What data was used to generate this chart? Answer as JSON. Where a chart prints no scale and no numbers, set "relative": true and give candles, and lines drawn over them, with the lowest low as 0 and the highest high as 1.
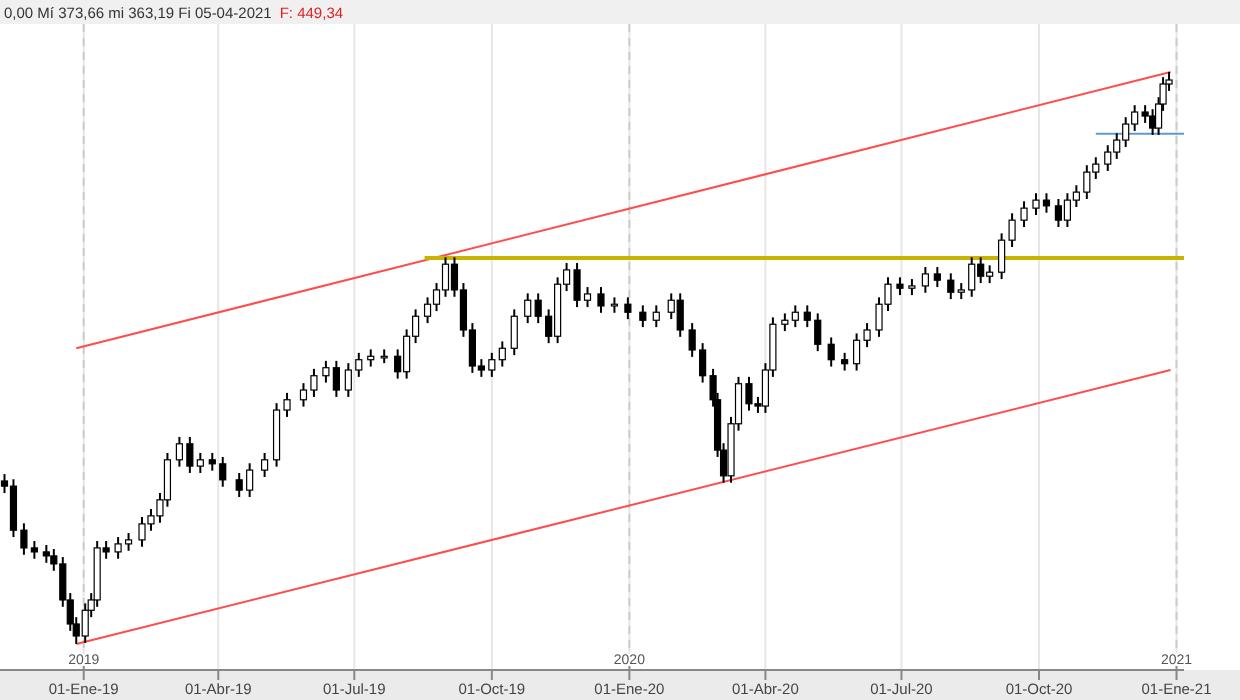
{
  "chart_data": {
    "type": "candlestick",
    "relative": true,
    "color": "#000000",
    "grid": "x",
    "annotations": [
      "0,00 Mí 373,66 mi 363,19 Fi 05-04-2021",
      "F: 449,34"
    ],
    "xlim": [
      "2018-11-06",
      "2021-01-06"
    ],
    "xticks": [
      {
        "value": "2019-01-01",
        "label": "01-Ene-19"
      },
      {
        "value": "2019-04-01",
        "label": "01-Abr-19"
      },
      {
        "value": "2019-07-01",
        "label": "01-Jul-19"
      },
      {
        "value": "2019-10-01",
        "label": "01-Oct-19"
      },
      {
        "value": "2020-01-01",
        "label": "01-Ene-20"
      },
      {
        "value": "2020-04-01",
        "label": "01-Abr-20"
      },
      {
        "value": "2020-07-01",
        "label": "01-Jul-20"
      },
      {
        "value": "2020-10-01",
        "label": "01-Oct-20"
      },
      {
        "value": "2021-01-01",
        "label": "01-Ene-21"
      }
    ],
    "x2lim": [
      "2018-11-06",
      "2021-01-06"
    ],
    "x2ticks": [
      {
        "value": "2019-01-01",
        "label": "2019"
      },
      {
        "value": "2020-01-01",
        "label": "2020"
      },
      {
        "value": "2021-01-01",
        "label": "2021"
      }
    ],
    "x": [
      "2018-11-09",
      "2018-11-15",
      "2018-11-22",
      "2018-11-29",
      "2018-12-07",
      "2018-12-12",
      "2018-12-18",
      "2018-12-23",
      "2018-12-27",
      "2019-01-02",
      "2019-01-06",
      "2019-01-10",
      "2019-01-16",
      "2019-01-24",
      "2019-01-31",
      "2019-02-09",
      "2019-02-15",
      "2019-02-21",
      "2019-02-26",
      "2019-03-06",
      "2019-03-13",
      "2019-03-20",
      "2019-03-28",
      "2019-04-04",
      "2019-04-15",
      "2019-04-22",
      "2019-05-02",
      "2019-05-10",
      "2019-05-17",
      "2019-05-28",
      "2019-06-04",
      "2019-06-12",
      "2019-06-19",
      "2019-06-27",
      "2019-07-04",
      "2019-07-12",
      "2019-07-21",
      "2019-07-30",
      "2019-08-05",
      "2019-08-11",
      "2019-08-19",
      "2019-08-25",
      "2019-08-31",
      "2019-09-06",
      "2019-09-12",
      "2019-09-18",
      "2019-09-24",
      "2019-10-01",
      "2019-10-08",
      "2019-10-16",
      "2019-10-25",
      "2019-11-01",
      "2019-11-08",
      "2019-11-14",
      "2019-11-20",
      "2019-11-27",
      "2019-12-04",
      "2019-12-13",
      "2019-12-22",
      "2019-12-31",
      "2020-01-10",
      "2020-01-19",
      "2020-01-29",
      "2020-02-04",
      "2020-02-12",
      "2020-02-19",
      "2020-02-26",
      "2020-02-29",
      "2020-03-04",
      "2020-03-09",
      "2020-03-14",
      "2020-03-21",
      "2020-03-27",
      "2020-04-01",
      "2020-04-06",
      "2020-04-14",
      "2020-04-21",
      "2020-04-29",
      "2020-05-06",
      "2020-05-15",
      "2020-05-24",
      "2020-06-01",
      "2020-06-08",
      "2020-06-16",
      "2020-06-22",
      "2020-06-30",
      "2020-07-08",
      "2020-07-17",
      "2020-07-25",
      "2020-08-03",
      "2020-08-10",
      "2020-08-17",
      "2020-08-23",
      "2020-08-29",
      "2020-09-06",
      "2020-09-13",
      "2020-09-21",
      "2020-09-29",
      "2020-10-06",
      "2020-10-14",
      "2020-10-20",
      "2020-10-26",
      "2020-11-02",
      "2020-11-08",
      "2020-11-16",
      "2020-11-22",
      "2020-11-28",
      "2020-12-04",
      "2020-12-11",
      "2020-12-16",
      "2020-12-20",
      "2020-12-23",
      "2020-12-27"
    ],
    "ohlc": [
      [
        0.285,
        0.297,
        0.264,
        0.276
      ],
      [
        0.276,
        0.288,
        0.187,
        0.199
      ],
      [
        0.199,
        0.211,
        0.156,
        0.168
      ],
      [
        0.168,
        0.18,
        0.149,
        0.161
      ],
      [
        0.161,
        0.173,
        0.142,
        0.154
      ],
      [
        0.154,
        0.166,
        0.128,
        0.14
      ],
      [
        0.14,
        0.152,
        0.065,
        0.077
      ],
      [
        0.077,
        0.089,
        0.023,
        0.035
      ],
      [
        0.035,
        0.047,
        0,
        0.014
      ],
      [
        0.014,
        0.071,
        0.002,
        0.059
      ],
      [
        0.059,
        0.089,
        0.047,
        0.077
      ],
      [
        0.077,
        0.18,
        0.065,
        0.168
      ],
      [
        0.168,
        0.18,
        0.149,
        0.161
      ],
      [
        0.161,
        0.187,
        0.149,
        0.175
      ],
      [
        0.175,
        0.194,
        0.163,
        0.182
      ],
      [
        0.182,
        0.222,
        0.17,
        0.21
      ],
      [
        0.21,
        0.236,
        0.198,
        0.224
      ],
      [
        0.224,
        0.264,
        0.212,
        0.252
      ],
      [
        0.252,
        0.334,
        0.24,
        0.322
      ],
      [
        0.322,
        0.362,
        0.31,
        0.35
      ],
      [
        0.35,
        0.362,
        0.299,
        0.311
      ],
      [
        0.311,
        0.334,
        0.299,
        0.322
      ],
      [
        0.322,
        0.334,
        0.303,
        0.315
      ],
      [
        0.315,
        0.327,
        0.275,
        0.287
      ],
      [
        0.287,
        0.299,
        0.257,
        0.269
      ],
      [
        0.269,
        0.316,
        0.257,
        0.304
      ],
      [
        0.304,
        0.334,
        0.292,
        0.322
      ],
      [
        0.322,
        0.421,
        0.31,
        0.409
      ],
      [
        0.409,
        0.439,
        0.397,
        0.427
      ],
      [
        0.427,
        0.456,
        0.415,
        0.444
      ],
      [
        0.444,
        0.481,
        0.432,
        0.469
      ],
      [
        0.469,
        0.495,
        0.457,
        0.483
      ],
      [
        0.483,
        0.495,
        0.432,
        0.444
      ],
      [
        0.444,
        0.491,
        0.432,
        0.479
      ],
      [
        0.479,
        0.509,
        0.467,
        0.497
      ],
      [
        0.497,
        0.515,
        0.485,
        0.503
      ],
      [
        0.503,
        0.515,
        0.491,
        0.503
      ],
      [
        0.503,
        0.515,
        0.464,
        0.476
      ],
      [
        0.476,
        0.55,
        0.464,
        0.538
      ],
      [
        0.538,
        0.585,
        0.526,
        0.573
      ],
      [
        0.573,
        0.606,
        0.561,
        0.594
      ],
      [
        0.594,
        0.631,
        0.582,
        0.619
      ],
      [
        0.619,
        0.676,
        0.607,
        0.664
      ],
      [
        0.664,
        0.676,
        0.607,
        0.619
      ],
      [
        0.619,
        0.631,
        0.537,
        0.549
      ],
      [
        0.549,
        0.561,
        0.474,
        0.486
      ],
      [
        0.486,
        0.498,
        0.467,
        0.479
      ],
      [
        0.479,
        0.509,
        0.467,
        0.497
      ],
      [
        0.497,
        0.529,
        0.485,
        0.517
      ],
      [
        0.517,
        0.585,
        0.505,
        0.573
      ],
      [
        0.573,
        0.613,
        0.561,
        0.601
      ],
      [
        0.601,
        0.613,
        0.561,
        0.573
      ],
      [
        0.573,
        0.585,
        0.526,
        0.538
      ],
      [
        0.538,
        0.641,
        0.526,
        0.629
      ],
      [
        0.629,
        0.666,
        0.617,
        0.654
      ],
      [
        0.654,
        0.666,
        0.589,
        0.601
      ],
      [
        0.601,
        0.624,
        0.589,
        0.612
      ],
      [
        0.612,
        0.624,
        0.579,
        0.591
      ],
      [
        0.591,
        0.606,
        0.579,
        0.594
      ],
      [
        0.594,
        0.606,
        0.568,
        0.58
      ],
      [
        0.58,
        0.592,
        0.554,
        0.566
      ],
      [
        0.566,
        0.592,
        0.554,
        0.58
      ],
      [
        0.58,
        0.613,
        0.568,
        0.601
      ],
      [
        0.601,
        0.613,
        0.537,
        0.549
      ],
      [
        0.549,
        0.561,
        0.502,
        0.514
      ],
      [
        0.514,
        0.526,
        0.457,
        0.469
      ],
      [
        0.469,
        0.481,
        0.415,
        0.427
      ],
      [
        0.427,
        0.439,
        0.327,
        0.339
      ],
      [
        0.339,
        0.351,
        0.282,
        0.294
      ],
      [
        0.294,
        0.397,
        0.282,
        0.385
      ],
      [
        0.385,
        0.467,
        0.373,
        0.455
      ],
      [
        0.455,
        0.467,
        0.408,
        0.42
      ],
      [
        0.42,
        0.432,
        0.404,
        0.416
      ],
      [
        0.416,
        0.491,
        0.404,
        0.479
      ],
      [
        0.479,
        0.571,
        0.467,
        0.559
      ],
      [
        0.559,
        0.578,
        0.547,
        0.566
      ],
      [
        0.566,
        0.592,
        0.554,
        0.58
      ],
      [
        0.58,
        0.592,
        0.554,
        0.566
      ],
      [
        0.566,
        0.578,
        0.512,
        0.524
      ],
      [
        0.524,
        0.536,
        0.485,
        0.497
      ],
      [
        0.497,
        0.509,
        0.478,
        0.49
      ],
      [
        0.49,
        0.543,
        0.478,
        0.531
      ],
      [
        0.531,
        0.561,
        0.519,
        0.549
      ],
      [
        0.549,
        0.606,
        0.537,
        0.594
      ],
      [
        0.594,
        0.641,
        0.582,
        0.629
      ],
      [
        0.629,
        0.641,
        0.61,
        0.622
      ],
      [
        0.622,
        0.638,
        0.61,
        0.626
      ],
      [
        0.626,
        0.659,
        0.614,
        0.647
      ],
      [
        0.647,
        0.659,
        0.624,
        0.636
      ],
      [
        0.636,
        0.648,
        0.603,
        0.615
      ],
      [
        0.615,
        0.631,
        0.603,
        0.619
      ],
      [
        0.619,
        0.676,
        0.607,
        0.664
      ],
      [
        0.664,
        0.676,
        0.631,
        0.643
      ],
      [
        0.643,
        0.662,
        0.631,
        0.65
      ],
      [
        0.65,
        0.718,
        0.638,
        0.706
      ],
      [
        0.706,
        0.753,
        0.694,
        0.741
      ],
      [
        0.741,
        0.774,
        0.729,
        0.762
      ],
      [
        0.762,
        0.788,
        0.75,
        0.776
      ],
      [
        0.776,
        0.788,
        0.754,
        0.766
      ],
      [
        0.766,
        0.778,
        0.729,
        0.741
      ],
      [
        0.741,
        0.788,
        0.729,
        0.776
      ],
      [
        0.776,
        0.802,
        0.764,
        0.79
      ],
      [
        0.79,
        0.837,
        0.778,
        0.825
      ],
      [
        0.825,
        0.851,
        0.813,
        0.839
      ],
      [
        0.839,
        0.872,
        0.827,
        0.86
      ],
      [
        0.86,
        0.893,
        0.848,
        0.881
      ],
      [
        0.881,
        0.921,
        0.869,
        0.909
      ],
      [
        0.909,
        0.942,
        0.897,
        0.93
      ],
      [
        0.93,
        0.942,
        0.911,
        0.923
      ],
      [
        0.923,
        0.935,
        0.89,
        0.902
      ],
      [
        0.902,
        0.956,
        0.89,
        0.944
      ],
      [
        0.944,
        0.991,
        0.932,
        0.979
      ],
      [
        0.979,
        1,
        0.967,
        0.986
      ]
    ],
    "series": [
      {
        "type": "line",
        "x": [
          "2018-12-27",
          "2020-12-28"
        ],
        "values": [
          0.517,
          1
        ],
        "color": "#ff4d4d"
      },
      {
        "type": "line",
        "x": [
          "2018-12-27",
          "2020-12-28"
        ],
        "values": [
          0,
          0.479
        ],
        "color": "#ff4d4d"
      },
      {
        "type": "line",
        "x": [
          "2019-08-17",
          "2021-01-06"
        ],
        "values": [
          0.675,
          0.675
        ],
        "color": "#c8b400"
      },
      {
        "type": "line",
        "x": [
          "2020-11-08",
          "2021-01-06"
        ],
        "values": [
          0.892,
          0.892
        ],
        "color": "#5b9bd5"
      }
    ]
  }
}
